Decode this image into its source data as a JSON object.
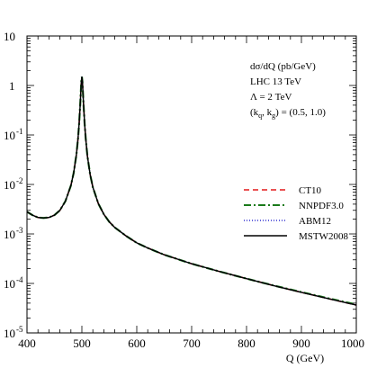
{
  "chart_data": {
    "type": "line",
    "xlabel": "Q (GeV)",
    "ylabel": "",
    "xlim": [
      400,
      1000
    ],
    "ylim": [
      1e-05,
      10
    ],
    "yscale": "log",
    "x_ticks": [
      "400",
      "500",
      "600",
      "700",
      "800",
      "900",
      "1000"
    ],
    "y_ticks": [
      {
        "base": "10",
        "exp": ""
      },
      {
        "base": "1",
        "exp": ""
      },
      {
        "base": "10",
        "exp": "-1"
      },
      {
        "base": "10",
        "exp": "-2"
      },
      {
        "base": "10",
        "exp": "-3"
      },
      {
        "base": "10",
        "exp": "-4"
      },
      {
        "base": "10",
        "exp": "-5"
      }
    ],
    "annotations": {
      "line1": "dσ/dQ (pb/GeV)",
      "line2": "LHC 13 TeV",
      "line3": "Λ = 2 TeV",
      "line4_pre": "(k",
      "line4_sub1": "q",
      "line4_mid": ", k",
      "line4_sub2": "g",
      "line4_post": ") = (0.5, 1.0)"
    },
    "legend_position": "right",
    "x": [
      400,
      410,
      420,
      430,
      440,
      450,
      460,
      470,
      480,
      485,
      490,
      493,
      495,
      497,
      499,
      500,
      501,
      503,
      505,
      507,
      510,
      515,
      520,
      530,
      540,
      550,
      560,
      580,
      600,
      620,
      650,
      700,
      750,
      800,
      850,
      900,
      950,
      1000
    ],
    "series": [
      {
        "name": "CT10",
        "color": "#e41a1c",
        "dash": "6,4",
        "values": [
          0.0028,
          0.0024,
          0.00215,
          0.0021,
          0.00215,
          0.0024,
          0.003,
          0.0046,
          0.0095,
          0.017,
          0.04,
          0.085,
          0.17,
          0.42,
          1.2,
          1.5,
          1.2,
          0.42,
          0.17,
          0.085,
          0.038,
          0.016,
          0.0088,
          0.0041,
          0.0025,
          0.00175,
          0.00135,
          0.00092,
          0.00066,
          0.00052,
          0.00038,
          0.00025,
          0.000175,
          0.000125,
          9e-05,
          6.6e-05,
          4.9e-05,
          3.65e-05
        ]
      },
      {
        "name": "NNPDF3.0",
        "color": "#1a7a1a",
        "dash": "8,3,2,3",
        "values": [
          0.0028,
          0.0024,
          0.00215,
          0.0021,
          0.00215,
          0.0024,
          0.003,
          0.0046,
          0.0095,
          0.017,
          0.04,
          0.085,
          0.17,
          0.42,
          1.2,
          1.5,
          1.2,
          0.42,
          0.17,
          0.085,
          0.038,
          0.016,
          0.0088,
          0.0041,
          0.0025,
          0.00175,
          0.00135,
          0.00092,
          0.00066,
          0.00052,
          0.00038,
          0.00025,
          0.000175,
          0.000125,
          9.05e-05,
          6.68e-05,
          4.98e-05,
          3.75e-05
        ]
      },
      {
        "name": "ABM12",
        "color": "#3030d0",
        "dash": "1,2",
        "values": [
          0.0028,
          0.0024,
          0.00215,
          0.0021,
          0.00215,
          0.0024,
          0.003,
          0.0046,
          0.0095,
          0.017,
          0.04,
          0.085,
          0.17,
          0.42,
          1.2,
          1.5,
          1.2,
          0.42,
          0.17,
          0.085,
          0.038,
          0.016,
          0.0088,
          0.0041,
          0.0025,
          0.00175,
          0.00135,
          0.00092,
          0.00066,
          0.00052,
          0.00038,
          0.00025,
          0.000175,
          0.000125,
          9e-05,
          6.6e-05,
          4.9e-05,
          3.65e-05
        ]
      },
      {
        "name": "MSTW2008",
        "color": "#000000",
        "dash": "",
        "values": [
          0.0028,
          0.0024,
          0.00215,
          0.0021,
          0.00215,
          0.0024,
          0.003,
          0.0046,
          0.0095,
          0.017,
          0.04,
          0.085,
          0.17,
          0.42,
          1.2,
          1.5,
          1.2,
          0.42,
          0.17,
          0.085,
          0.038,
          0.016,
          0.0088,
          0.0041,
          0.0025,
          0.00175,
          0.00135,
          0.00092,
          0.00066,
          0.00052,
          0.00038,
          0.00025,
          0.000175,
          0.000125,
          9e-05,
          6.6e-05,
          4.9e-05,
          3.65e-05
        ]
      }
    ]
  }
}
